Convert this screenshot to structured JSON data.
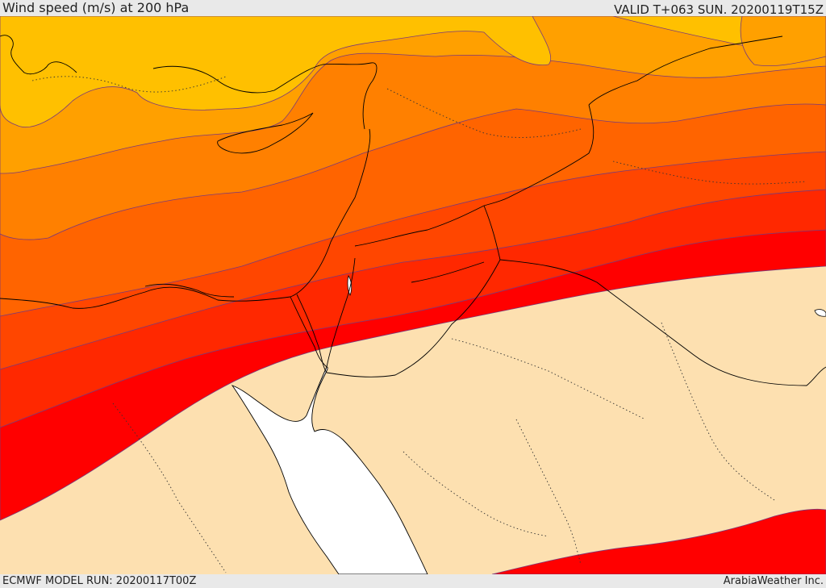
{
  "header": {
    "title": "Wind speed (m/s) at 200 hPa",
    "valid": "VALID T+063 SUN. 20200119T15Z"
  },
  "footer": {
    "model_run": "ECMWF MODEL RUN: 20200117T00Z",
    "credit": "ArabiaWeather Inc."
  },
  "map": {
    "sea_color": "#ffffff",
    "land_outline_color": "#000000",
    "contour_line_color": "#7a3a7a",
    "band_colors": [
      "#fde0b0",
      "#ffc000",
      "#ffa000",
      "#ff8000",
      "#ff6400",
      "#ff4600",
      "#ff2800",
      "#ff0000"
    ]
  }
}
